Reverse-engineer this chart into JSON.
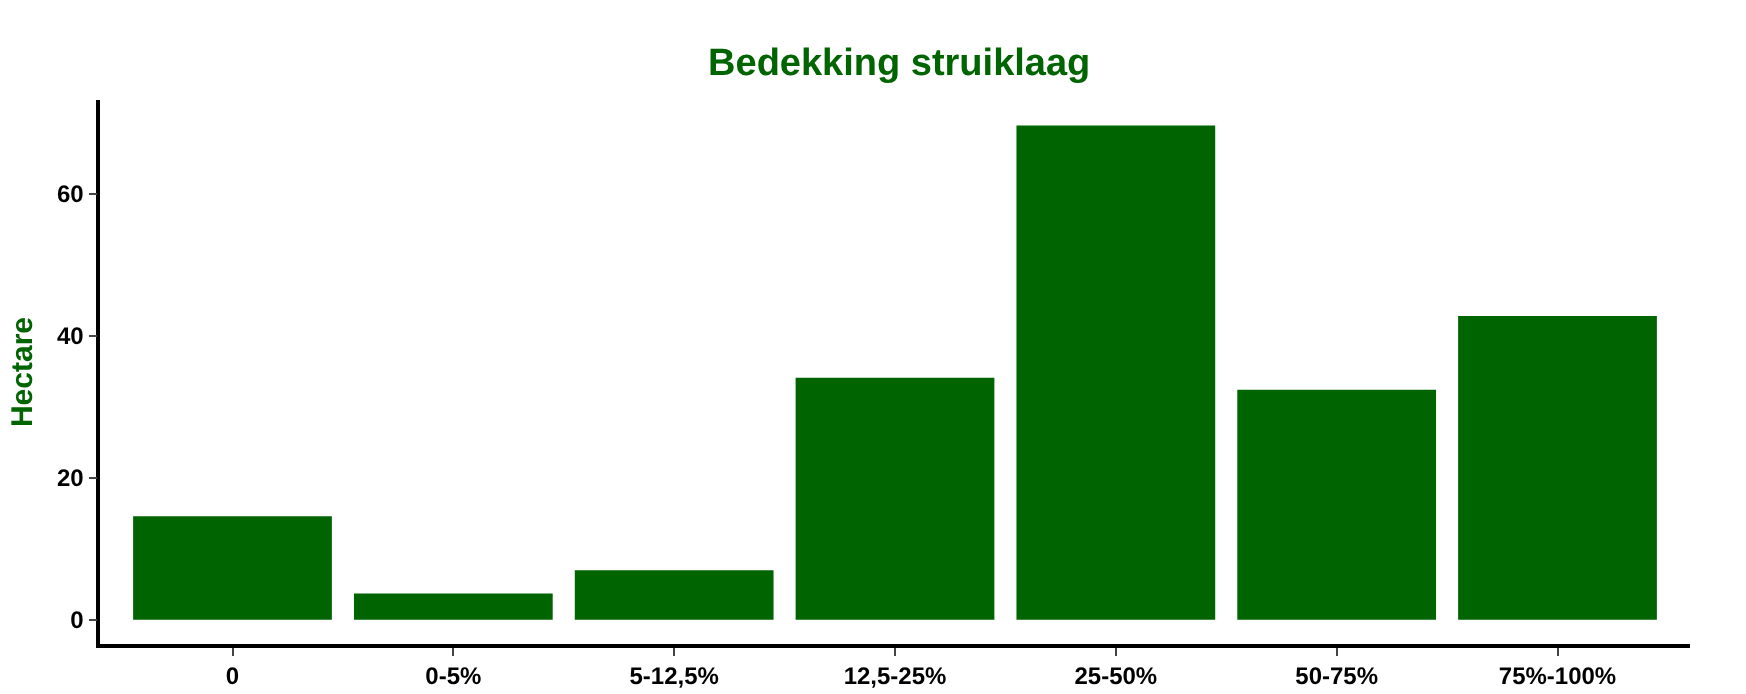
{
  "chart_data": {
    "type": "bar",
    "title": "Bedekking struiklaag",
    "ylabel": "Hectare",
    "categories": [
      "0",
      "0-5%",
      "5-12,5%",
      "12,5-25%",
      "25-50%",
      "50-75%",
      "75%-100%"
    ],
    "values": [
      14.6,
      3.7,
      7.0,
      34.1,
      69.6,
      32.4,
      42.8
    ],
    "color": "#006400",
    "ylim": [
      -3.4,
      73.2
    ],
    "yticks": [
      0,
      20,
      40,
      60
    ],
    "grid": false
  }
}
